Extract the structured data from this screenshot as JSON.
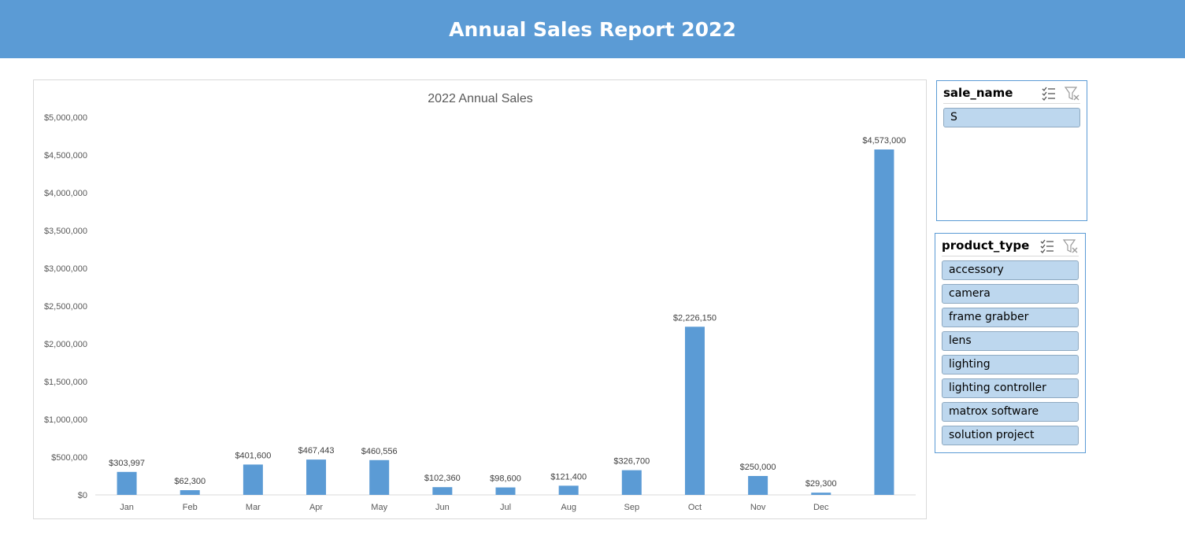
{
  "header": {
    "title": "Annual Sales Report 2022"
  },
  "colors": {
    "header_bg": "#5b9bd5",
    "bar": "#5b9bd5",
    "slicer_item_bg": "#bdd7ee",
    "slicer_border": "#5b9bd5"
  },
  "chart_data": {
    "type": "bar",
    "title": "2022 Annual Sales",
    "categories": [
      "Jan",
      "Feb",
      "Mar",
      "Apr",
      "May",
      "Jun",
      "Jul",
      "Aug",
      "Sep",
      "Oct",
      "Nov",
      "Dec",
      ""
    ],
    "values": [
      303997,
      62300,
      401600,
      467443,
      460556,
      102360,
      98600,
      121400,
      326700,
      2226150,
      250000,
      29300,
      4573000
    ],
    "data_labels": [
      "$303,997",
      "$62,300",
      "$401,600",
      "$467,443",
      "$460,556",
      "$102,360",
      "$98,600",
      "$121,400",
      "$326,700",
      "$2,226,150",
      "$250,000",
      "$29,300",
      "$4,573,000"
    ],
    "yticks": [
      0,
      500000,
      1000000,
      1500000,
      2000000,
      2500000,
      3000000,
      3500000,
      4000000,
      4500000,
      5000000
    ],
    "ytick_labels": [
      "$0",
      "$500,000",
      "$1,000,000",
      "$1,500,000",
      "$2,000,000",
      "$2,500,000",
      "$3,000,000",
      "$3,500,000",
      "$4,000,000",
      "$4,500,000",
      "$5,000,000"
    ],
    "ylim": [
      0,
      5000000
    ],
    "xlabel": "",
    "ylabel": "",
    "grid": false,
    "legend": "none"
  },
  "slicers": {
    "sale_name": {
      "title": "sale_name",
      "items": [
        "S"
      ]
    },
    "product_type": {
      "title": "product_type",
      "items": [
        "accessory",
        "camera",
        "frame grabber",
        "lens",
        "lighting",
        "lighting controller",
        "matrox software",
        "solution project"
      ]
    }
  }
}
